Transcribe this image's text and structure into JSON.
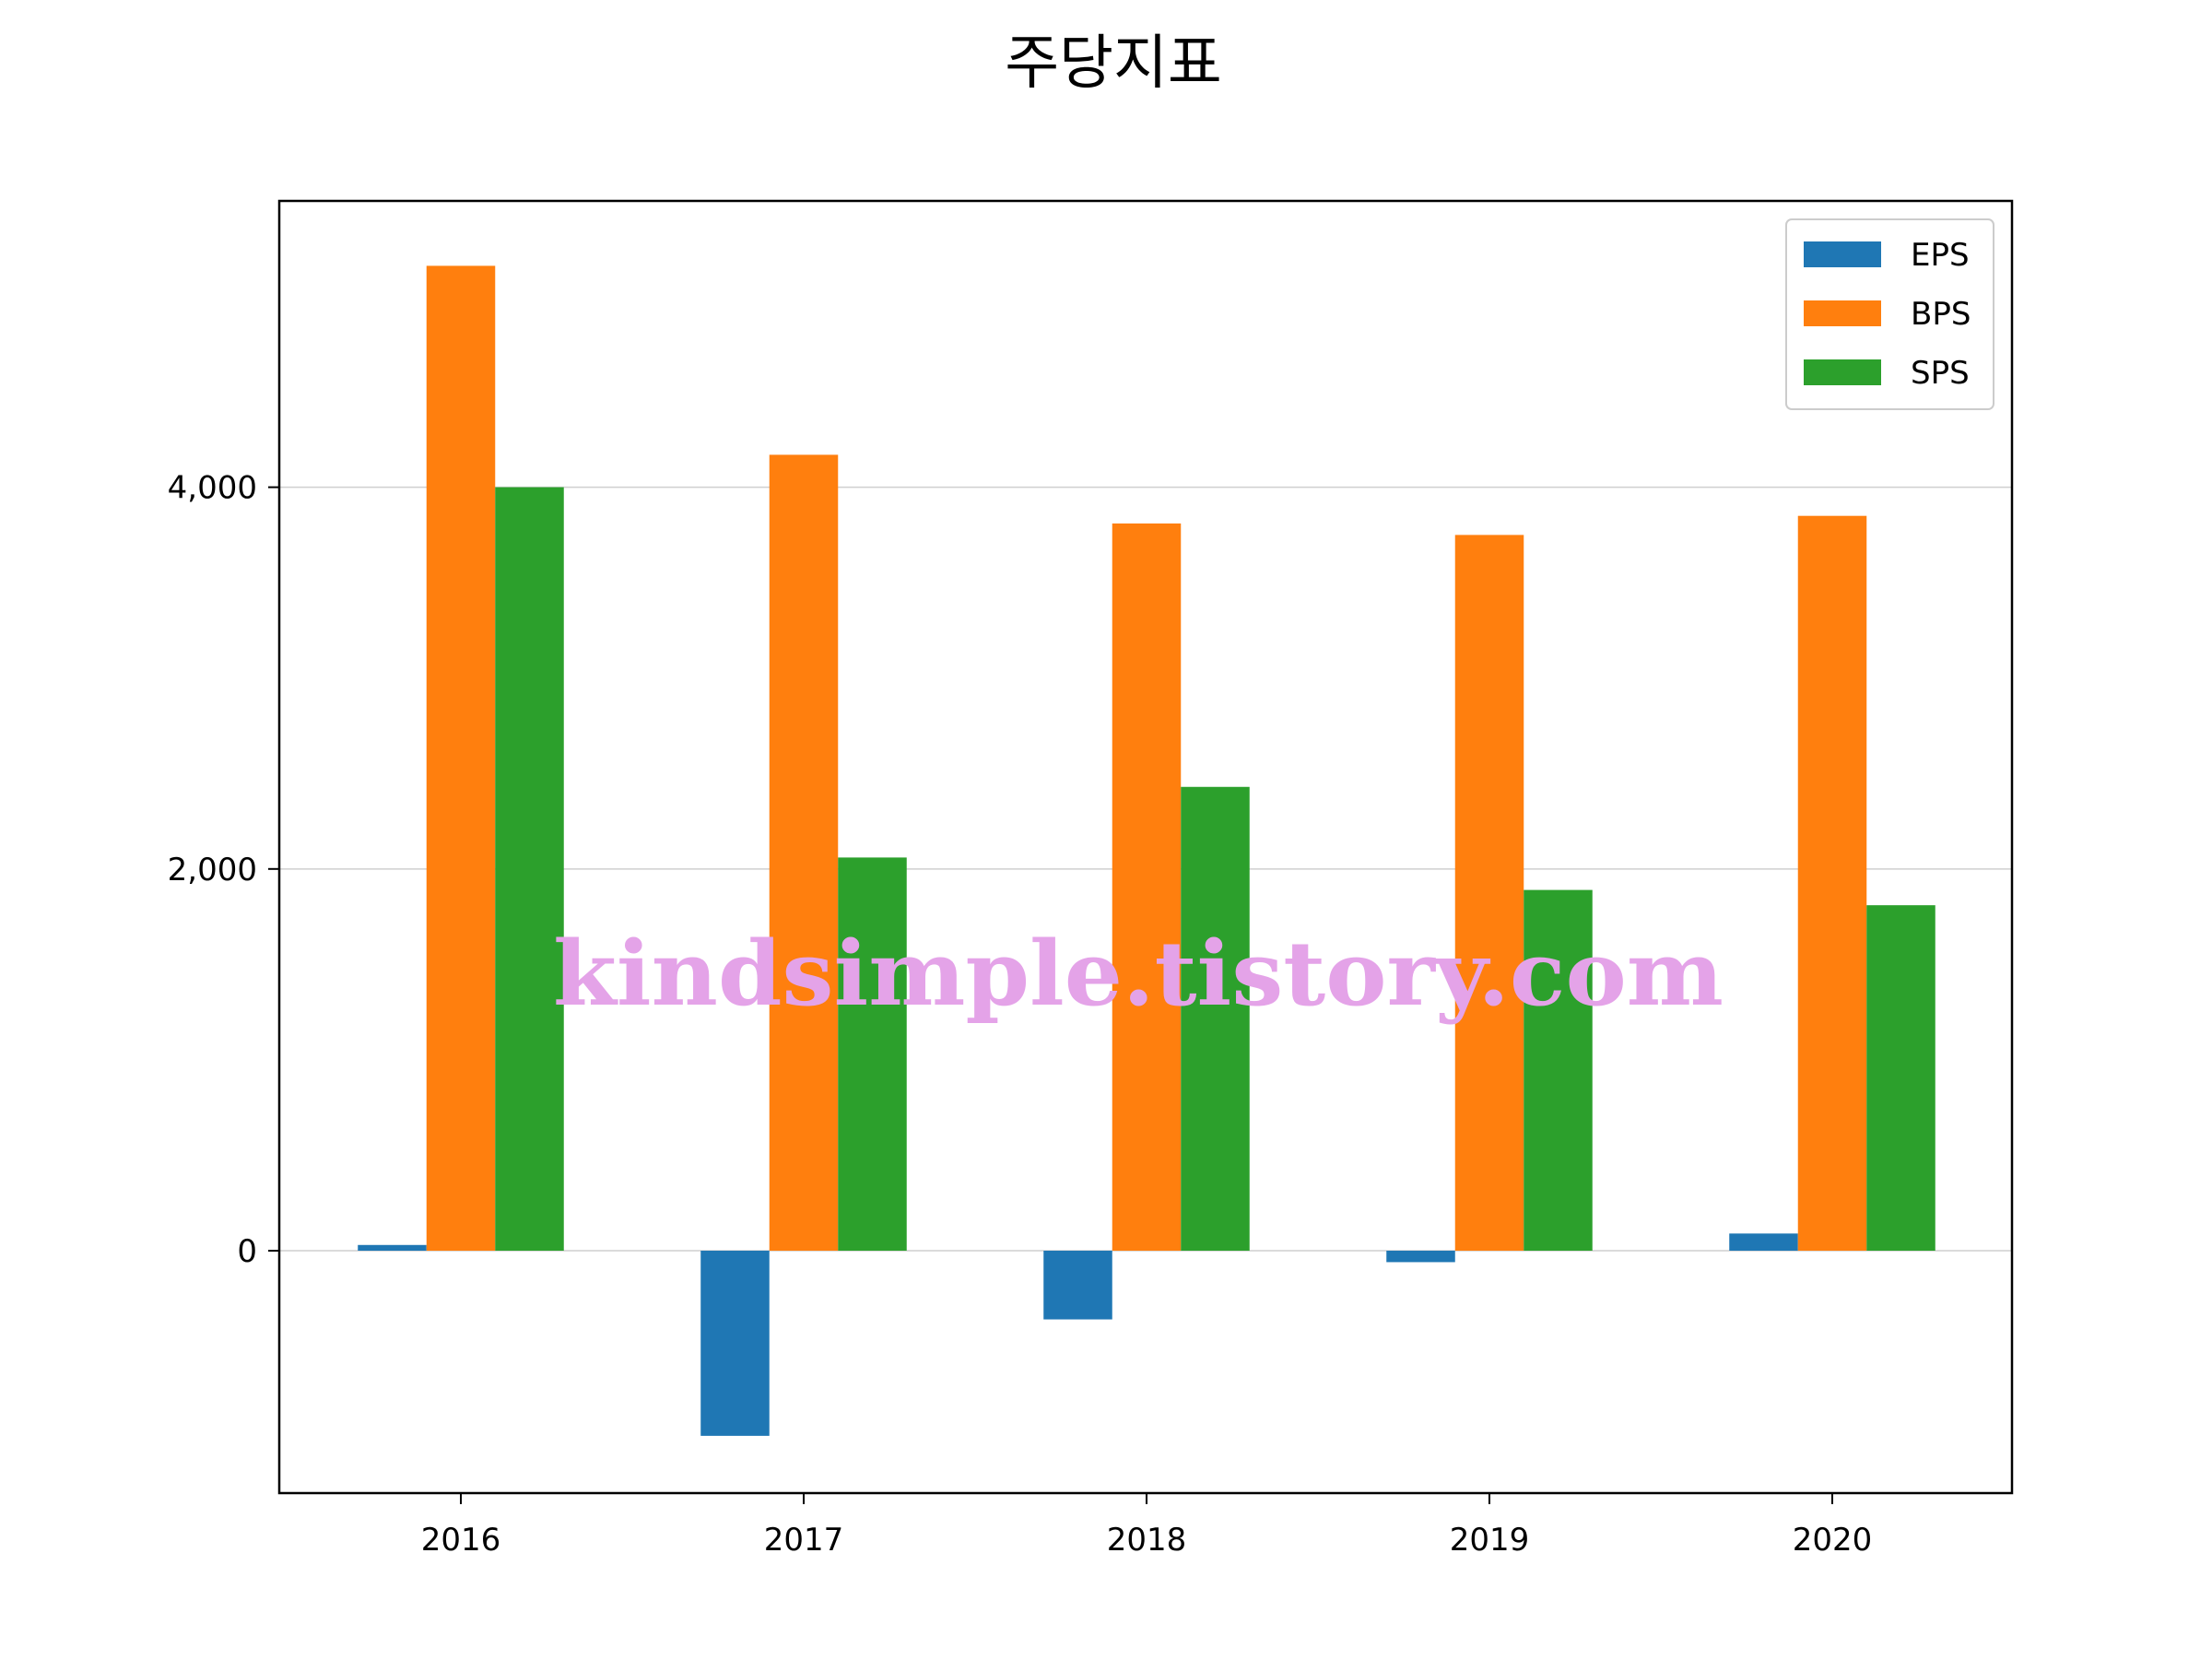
{
  "chart_data": {
    "type": "bar",
    "title": "주당지표",
    "xlabel": "",
    "ylabel": "",
    "categories": [
      "2016",
      "2017",
      "2018",
      "2019",
      "2020"
    ],
    "series": [
      {
        "name": "EPS",
        "color": "#1f77b4",
        "values": [
          30,
          -970,
          -360,
          -60,
          90
        ]
      },
      {
        "name": "BPS",
        "color": "#ff7f0e",
        "values": [
          5160,
          4170,
          3810,
          3750,
          3850
        ]
      },
      {
        "name": "SPS",
        "color": "#2ca02c",
        "values": [
          4000,
          2060,
          2430,
          1890,
          1810
        ]
      }
    ],
    "ylim": [
      -1270,
      5500
    ],
    "yticks": [
      0,
      2000,
      4000
    ],
    "ytick_labels": [
      "0",
      "2,000",
      "4,000"
    ],
    "grid": "horizontal",
    "legend": "top-right"
  },
  "watermark": {
    "text": "kindsimple.tistory.com",
    "color": "#e4a3e8"
  }
}
